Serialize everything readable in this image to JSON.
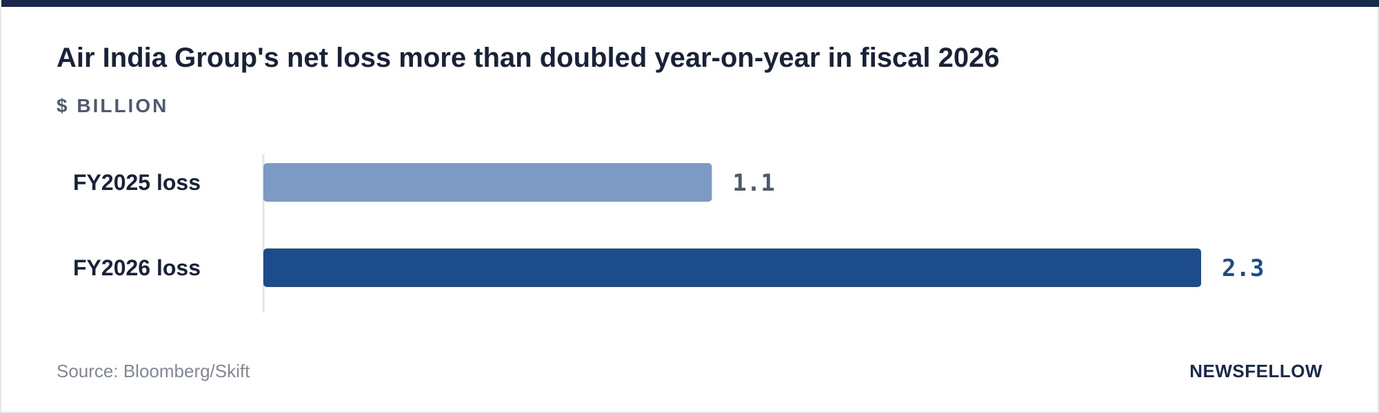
{
  "header": {
    "title": "Air India Group's net loss more than doubled year-on-year in fiscal 2026",
    "unit_label": "$ BILLION"
  },
  "footer": {
    "source": "Source: Bloomberg/Skift",
    "brand": "NEWSFELLOW"
  },
  "colors": {
    "accent": "#172a4d",
    "fy2025_bar": "#7d9ac4",
    "fy2026_bar": "#1c4c8c",
    "fy2025_value": "#4d5a6e",
    "fy2026_value": "#1c4c8c"
  },
  "chart_data": {
    "type": "bar",
    "orientation": "horizontal",
    "categories": [
      "FY2025 loss",
      "FY2026 loss"
    ],
    "values": [
      1.1,
      2.3
    ],
    "value_labels": [
      "1.1",
      "2.3"
    ],
    "title": "Air India Group's net loss more than doubled year-on-year in fiscal 2026",
    "ylabel": "$ BILLION",
    "xlim": [
      0,
      2.3
    ],
    "grid": false,
    "legend": "none"
  }
}
